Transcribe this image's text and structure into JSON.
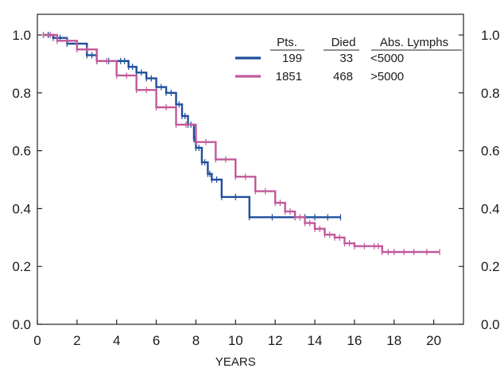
{
  "chart_data": {
    "type": "line",
    "subtype": "kaplan-meier survival curve with censor marks",
    "xlabel": "YEARS",
    "ylabel": "",
    "xlim": [
      0,
      21.5
    ],
    "ylim": [
      0,
      1.05
    ],
    "xticks": [
      "0",
      "2",
      "4",
      "6",
      "8",
      "10",
      "12",
      "14",
      "16",
      "18",
      "20"
    ],
    "yticks": [
      "0.0",
      "0.2",
      "0.4",
      "0.6",
      "0.8",
      "1.0"
    ],
    "grid": false,
    "legend_position": "top-right",
    "legend_headers": [
      "Pts.",
      "Died",
      "Abs. Lymphs"
    ],
    "series": [
      {
        "name": "<5000",
        "label_display": "<5000",
        "pts": "199",
        "died": "33",
        "color": "#1f4e9c",
        "x": [
          0.3,
          0.8,
          1.5,
          2.5,
          3.0,
          4.2,
          4.6,
          5.0,
          5.5,
          6.0,
          6.5,
          7.0,
          7.3,
          7.6,
          7.9,
          8.0,
          8.3,
          8.6,
          8.8,
          9.3,
          10.7,
          13.0,
          14.0,
          15.3
        ],
        "y": [
          1.0,
          0.99,
          0.97,
          0.93,
          0.91,
          0.91,
          0.89,
          0.87,
          0.85,
          0.82,
          0.8,
          0.76,
          0.72,
          0.69,
          0.64,
          0.61,
          0.56,
          0.52,
          0.5,
          0.44,
          0.37,
          0.37,
          0.37,
          0.37
        ]
      },
      {
        "name": ">5000",
        "label_display": ">5000",
        "pts": "1851",
        "died": "468",
        "color": "#c2589a",
        "x": [
          0.3,
          1.0,
          2.0,
          3.0,
          4.0,
          5.0,
          6.0,
          7.0,
          8.0,
          9.0,
          10.0,
          11.0,
          12.0,
          12.5,
          13.0,
          13.5,
          14.0,
          14.5,
          15.0,
          15.5,
          16.0,
          17.0,
          17.4,
          18.0,
          19.0,
          20.3
        ],
        "y": [
          1.0,
          0.98,
          0.95,
          0.91,
          0.86,
          0.81,
          0.75,
          0.69,
          0.63,
          0.57,
          0.51,
          0.46,
          0.42,
          0.39,
          0.37,
          0.35,
          0.33,
          0.31,
          0.3,
          0.28,
          0.27,
          0.27,
          0.25,
          0.25,
          0.25,
          0.25
        ]
      }
    ]
  }
}
